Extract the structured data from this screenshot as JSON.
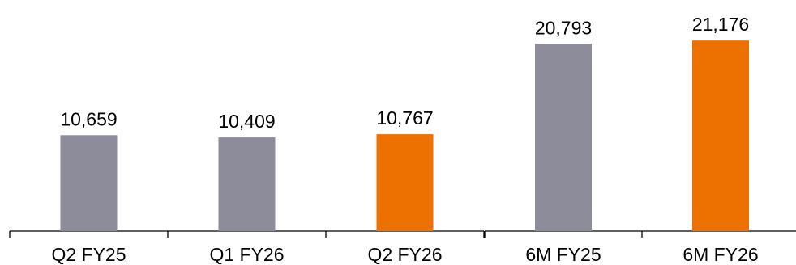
{
  "chart_data": [
    {
      "type": "bar",
      "categories": [
        "Q2 FY25",
        "Q1 FY26",
        "Q2 FY26"
      ],
      "values": [
        10659,
        10409,
        10767
      ],
      "value_labels": [
        "10,659",
        "10,409",
        "10,767"
      ],
      "highlight_index": 2,
      "ylim": [
        0,
        22000
      ],
      "grid": false,
      "title": "",
      "xlabel": "",
      "ylabel": ""
    },
    {
      "type": "bar",
      "categories": [
        "6M FY25",
        "6M FY26"
      ],
      "values": [
        20793,
        21176
      ],
      "value_labels": [
        "20,793",
        "21,176"
      ],
      "highlight_index": 1,
      "ylim": [
        0,
        22000
      ],
      "grid": false,
      "title": "",
      "xlabel": "",
      "ylabel": ""
    }
  ],
  "colors": {
    "base_bar": "#8c8c9a",
    "highlight_bar": "#ed7100",
    "axis": "#000000"
  }
}
